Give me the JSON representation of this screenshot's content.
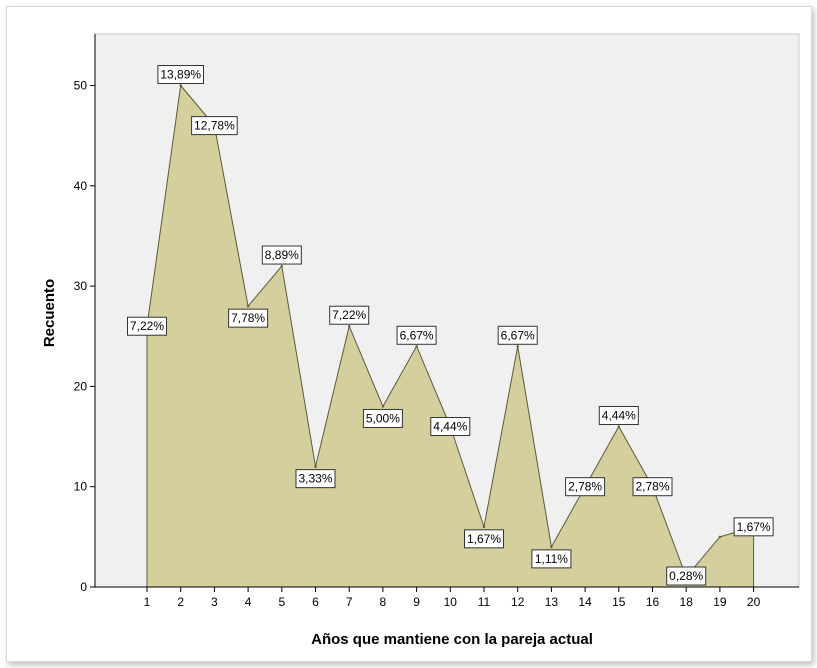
{
  "chart_data": {
    "type": "area",
    "xlabel": "Años que mantiene con la pareja actual",
    "ylabel": "Recuento",
    "categories": [
      "1",
      "2",
      "3",
      "4",
      "5",
      "6",
      "7",
      "8",
      "9",
      "10",
      "11",
      "12",
      "13",
      "14",
      "15",
      "16",
      "18",
      "19",
      "20"
    ],
    "values": [
      26,
      50,
      46,
      28,
      32,
      12,
      26,
      18,
      24,
      16,
      6,
      24,
      4,
      10,
      16,
      10,
      1,
      5,
      6
    ],
    "data_labels": [
      "7,22%",
      "13,89%",
      "12,78%",
      "7,78%",
      "8,89%",
      "3,33%",
      "7,22%",
      "5,00%",
      "6,67%",
      "4,44%",
      "1,67%",
      "6,67%",
      "1,11%",
      "2,78%",
      "4,44%",
      "2,78%",
      "0,28%",
      "",
      "1,67%"
    ],
    "ylim": [
      0,
      55
    ],
    "yticks": [
      0,
      10,
      20,
      30,
      40,
      50
    ],
    "grid": false,
    "colors": {
      "fill": "#d5cf9e",
      "stroke": "#5a5a3a",
      "plot_bg": "#f0f0f0"
    }
  }
}
